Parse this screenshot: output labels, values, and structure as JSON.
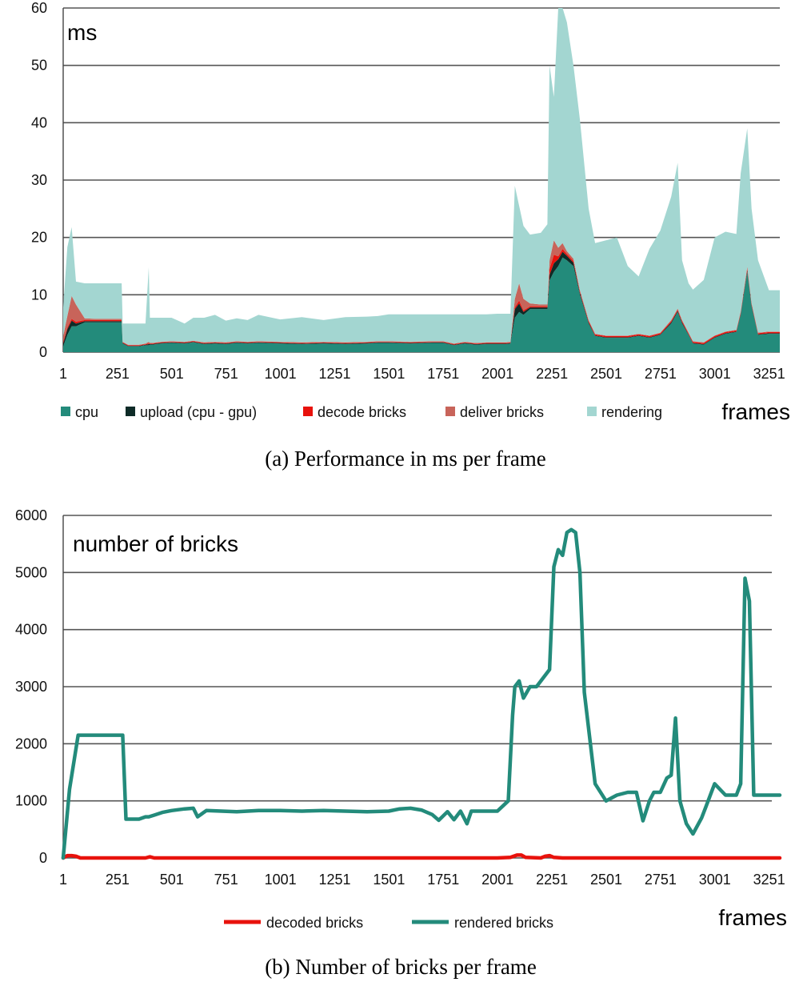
{
  "chart_data": [
    {
      "type": "area",
      "stacked": true,
      "inner_title": "ms",
      "xlabel": "frames",
      "caption": "(a)  Performance in ms per frame",
      "ylim": [
        0,
        60
      ],
      "yticks": [
        0,
        10,
        20,
        30,
        40,
        50,
        60
      ],
      "xlim": [
        1,
        3300
      ],
      "xticks": [
        1,
        251,
        501,
        751,
        1001,
        1251,
        1501,
        1751,
        2001,
        2251,
        2501,
        2751,
        3001,
        3251
      ],
      "grid": true,
      "legend_position": "bottom",
      "x": [
        1,
        20,
        40,
        60,
        100,
        150,
        200,
        270,
        275,
        300,
        350,
        380,
        395,
        400,
        410,
        450,
        500,
        560,
        600,
        650,
        700,
        750,
        800,
        850,
        900,
        1000,
        1100,
        1200,
        1300,
        1400,
        1450,
        1500,
        1600,
        1700,
        1750,
        1800,
        1850,
        1900,
        1950,
        2000,
        2040,
        2060,
        2080,
        2100,
        2120,
        2150,
        2200,
        2230,
        2240,
        2260,
        2280,
        2300,
        2320,
        2350,
        2380,
        2420,
        2450,
        2500,
        2550,
        2600,
        2650,
        2700,
        2750,
        2800,
        2830,
        2850,
        2880,
        2900,
        2950,
        3000,
        3050,
        3100,
        3120,
        3150,
        3170,
        3200,
        3250,
        3300
      ],
      "series": [
        {
          "name": "cpu",
          "color": "#238b7b",
          "values": [
            1,
            3,
            4.5,
            4.5,
            5.2,
            5.2,
            5.2,
            5.2,
            1.5,
            1.0,
            1.0,
            1.2,
            1.2,
            1.3,
            1.3,
            1.5,
            1.6,
            1.5,
            1.7,
            1.4,
            1.5,
            1.4,
            1.6,
            1.5,
            1.6,
            1.5,
            1.4,
            1.5,
            1.4,
            1.5,
            1.6,
            1.6,
            1.5,
            1.6,
            1.6,
            1.2,
            1.5,
            1.3,
            1.4,
            1.4,
            1.4,
            1.5,
            6,
            7,
            6.5,
            7.5,
            7.5,
            7.5,
            12.5,
            14,
            15,
            16.5,
            16,
            15,
            10,
            5,
            2.8,
            2.5,
            2.5,
            2.5,
            2.8,
            2.5,
            3,
            5,
            7,
            5,
            3,
            1.5,
            1.3,
            2.5,
            3.2,
            3.5,
            6.5,
            14,
            8,
            3,
            3.2,
            3.2
          ]
        },
        {
          "name": "upload (cpu - gpu)",
          "color": "#0e2b27",
          "values": [
            0.5,
            1,
            1,
            0.5,
            0.2,
            0.2,
            0.2,
            0.2,
            0.1,
            0.1,
            0.1,
            0.1,
            0.2,
            0.1,
            0.1,
            0.1,
            0.1,
            0.1,
            0.1,
            0.1,
            0.1,
            0.1,
            0.1,
            0.1,
            0.1,
            0.1,
            0.1,
            0.1,
            0.1,
            0.1,
            0.1,
            0.1,
            0.1,
            0.1,
            0.1,
            0.1,
            0.1,
            0.1,
            0.1,
            0.1,
            0.1,
            0.1,
            1.5,
            1.5,
            0.5,
            0.3,
            0.3,
            0.3,
            1,
            1.5,
            1.2,
            1,
            0.8,
            0.6,
            0.3,
            0.2,
            0.1,
            0.1,
            0.1,
            0.1,
            0.1,
            0.1,
            0.1,
            0.2,
            0.2,
            0.2,
            0.1,
            0.1,
            0.1,
            0.1,
            0.1,
            0.1,
            0.2,
            0.3,
            0.2,
            0.1,
            0.1,
            0.1
          ]
        },
        {
          "name": "decode bricks",
          "color": "#e8120c",
          "values": [
            0.3,
            0.3,
            0.3,
            0.3,
            0.2,
            0.2,
            0.2,
            0.2,
            0.1,
            0.1,
            0.1,
            0.1,
            0.1,
            0.1,
            0.1,
            0.1,
            0.1,
            0.1,
            0.1,
            0.1,
            0.1,
            0.1,
            0.1,
            0.1,
            0.1,
            0.1,
            0.1,
            0.1,
            0.1,
            0.1,
            0.1,
            0.1,
            0.1,
            0.1,
            0.1,
            0.1,
            0.1,
            0.1,
            0.1,
            0.1,
            0.1,
            0.1,
            0.3,
            0.5,
            0.3,
            0.2,
            0.2,
            0.2,
            1,
            1.5,
            0.5,
            0.5,
            0.3,
            0.3,
            0.2,
            0.2,
            0.2,
            0.2,
            0.2,
            0.2,
            0.2,
            0.2,
            0.2,
            0.2,
            0.2,
            0.2,
            0.2,
            0.2,
            0.2,
            0.2,
            0.2,
            0.2,
            0.2,
            0.3,
            0.2,
            0.2,
            0.2,
            0.2
          ]
        },
        {
          "name": "deliver bricks",
          "color": "#c8645a",
          "values": [
            1,
            2,
            4,
            3,
            0.3,
            0.2,
            0.2,
            0.2,
            0.1,
            0.1,
            0.1,
            0.1,
            0.3,
            0.1,
            0.1,
            0.1,
            0.1,
            0.1,
            0.1,
            0.1,
            0.1,
            0.1,
            0.1,
            0.1,
            0.1,
            0.1,
            0.1,
            0.1,
            0.1,
            0.1,
            0.1,
            0.1,
            0.1,
            0.1,
            0.1,
            0.1,
            0.1,
            0.1,
            0.1,
            0.1,
            0.1,
            0.1,
            1.5,
            3,
            2,
            0.5,
            0.3,
            0.3,
            1.5,
            2.5,
            1.5,
            1,
            0.5,
            0.4,
            0.3,
            0.2,
            0.1,
            0.1,
            0.1,
            0.1,
            0.1,
            0.1,
            0.1,
            0.2,
            0.2,
            0.2,
            0.1,
            0.1,
            0.1,
            0.1,
            0.1,
            0.1,
            0.2,
            0.3,
            0.2,
            0.1,
            0.1,
            0.1
          ]
        },
        {
          "name": "rendering",
          "color": "#a3d6d1",
          "values": [
            5,
            12,
            12,
            4,
            6.1,
            6.2,
            6.2,
            6.2,
            3.2,
            3.7,
            3.7,
            3.5,
            13,
            4.4,
            4.4,
            4.2,
            4.1,
            3.2,
            4.0,
            4.3,
            4.7,
            3.8,
            4.0,
            3.8,
            4.6,
            3.9,
            4.4,
            3.8,
            4.4,
            4.4,
            4.4,
            4.7,
            4.8,
            4.7,
            4.7,
            5.1,
            4.8,
            5.0,
            4.9,
            5.0,
            5.0,
            4.9,
            19.7,
            13.5,
            12.7,
            12,
            12.5,
            14,
            34,
            25,
            41.8,
            41.5,
            39.9,
            33.7,
            29.7,
            19.4,
            15.8,
            16.6,
            17.1,
            12.1,
            10,
            15.1,
            17.8,
            21.5,
            25.4,
            10.4,
            8.6,
            9,
            10.9,
            17.1,
            17.4,
            16.7,
            24.1,
            24.1,
            16.4,
            12.6,
            7.2,
            7.2
          ]
        }
      ]
    },
    {
      "type": "line",
      "inner_title": "number of bricks",
      "xlabel": "frames",
      "caption": "(b)  Number of bricks per frame",
      "ylim": [
        0,
        6000
      ],
      "yticks": [
        0,
        1000,
        2000,
        3000,
        4000,
        5000,
        6000
      ],
      "xlim": [
        1,
        3300
      ],
      "xticks": [
        1,
        251,
        501,
        751,
        1001,
        1251,
        1501,
        1751,
        2001,
        2251,
        2501,
        2751,
        3001,
        3251
      ],
      "grid": true,
      "legend_position": "bottom",
      "series": [
        {
          "name": "decoded bricks",
          "color": "#e8120c",
          "x": [
            1,
            20,
            40,
            60,
            80,
            300,
            380,
            400,
            420,
            2000,
            2060,
            2090,
            2110,
            2130,
            2200,
            2220,
            2240,
            2260,
            2300,
            3300
          ],
          "values": [
            0,
            40,
            40,
            30,
            0,
            0,
            0,
            20,
            0,
            0,
            10,
            50,
            50,
            10,
            0,
            30,
            40,
            10,
            0,
            0
          ]
        },
        {
          "name": "rendered bricks",
          "color": "#238b7b",
          "x": [
            1,
            30,
            70,
            100,
            150,
            250,
            275,
            290,
            350,
            380,
            395,
            420,
            460,
            500,
            560,
            600,
            620,
            660,
            800,
            900,
            1000,
            1100,
            1200,
            1300,
            1400,
            1500,
            1550,
            1600,
            1650,
            1700,
            1730,
            1770,
            1800,
            1830,
            1860,
            1880,
            1900,
            1950,
            2000,
            2050,
            2070,
            2080,
            2100,
            2120,
            2150,
            2180,
            2240,
            2260,
            2280,
            2300,
            2320,
            2340,
            2360,
            2380,
            2400,
            2450,
            2500,
            2550,
            2600,
            2640,
            2670,
            2700,
            2720,
            2750,
            2780,
            2800,
            2820,
            2840,
            2870,
            2900,
            2940,
            2960,
            3000,
            3050,
            3100,
            3120,
            3140,
            3160,
            3180,
            3200,
            3250,
            3300
          ],
          "values": [
            0,
            1200,
            2150,
            2150,
            2150,
            2150,
            2150,
            680,
            680,
            720,
            720,
            750,
            800,
            830,
            860,
            870,
            720,
            830,
            810,
            830,
            830,
            820,
            830,
            820,
            810,
            820,
            860,
            870,
            840,
            760,
            660,
            810,
            670,
            820,
            600,
            820,
            820,
            820,
            820,
            1000,
            2500,
            3000,
            3100,
            2800,
            3000,
            3000,
            3300,
            5100,
            5400,
            5300,
            5700,
            5750,
            5700,
            5000,
            2900,
            1300,
            1000,
            1100,
            1150,
            1150,
            650,
            1000,
            1150,
            1150,
            1400,
            1450,
            2450,
            1000,
            600,
            420,
            700,
            900,
            1300,
            1100,
            1100,
            1300,
            4900,
            4500,
            1100,
            1100,
            1100,
            1100
          ]
        }
      ]
    }
  ]
}
